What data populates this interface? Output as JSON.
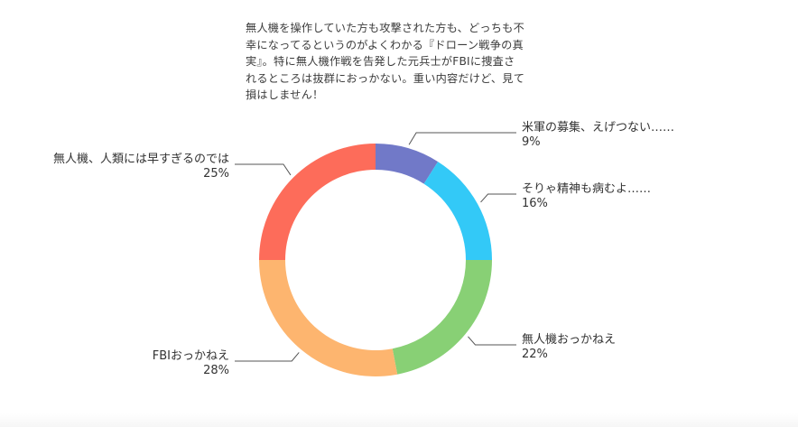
{
  "comment": "無人機を操作していた方も攻撃された方も、どっちも不幸になってるというのがよくわかる『ドローン戦争の真実』。特に無人機作戦を告発した元兵士がFBIに捜査されるところは抜群におっかない。重い内容だけど、見て損はしません！",
  "chart_data": {
    "type": "pie",
    "donut": true,
    "unit": "%",
    "slices": [
      {
        "label": "米軍の募集、えげつない……",
        "value": 9,
        "value_label": "9%",
        "color": "#7179c8"
      },
      {
        "label": "そりゃ精神も病むよ……",
        "value": 16,
        "value_label": "16%",
        "color": "#33c9f7"
      },
      {
        "label": "無人機おっかねえ",
        "value": 22,
        "value_label": "22%",
        "color": "#88d075"
      },
      {
        "label": "FBIおっかねえ",
        "value": 28,
        "value_label": "28%",
        "color": "#fdb56f"
      },
      {
        "label": "無人機、人類には早すぎるのでは",
        "value": 25,
        "value_label": "25%",
        "color": "#fd6c5a"
      }
    ]
  }
}
